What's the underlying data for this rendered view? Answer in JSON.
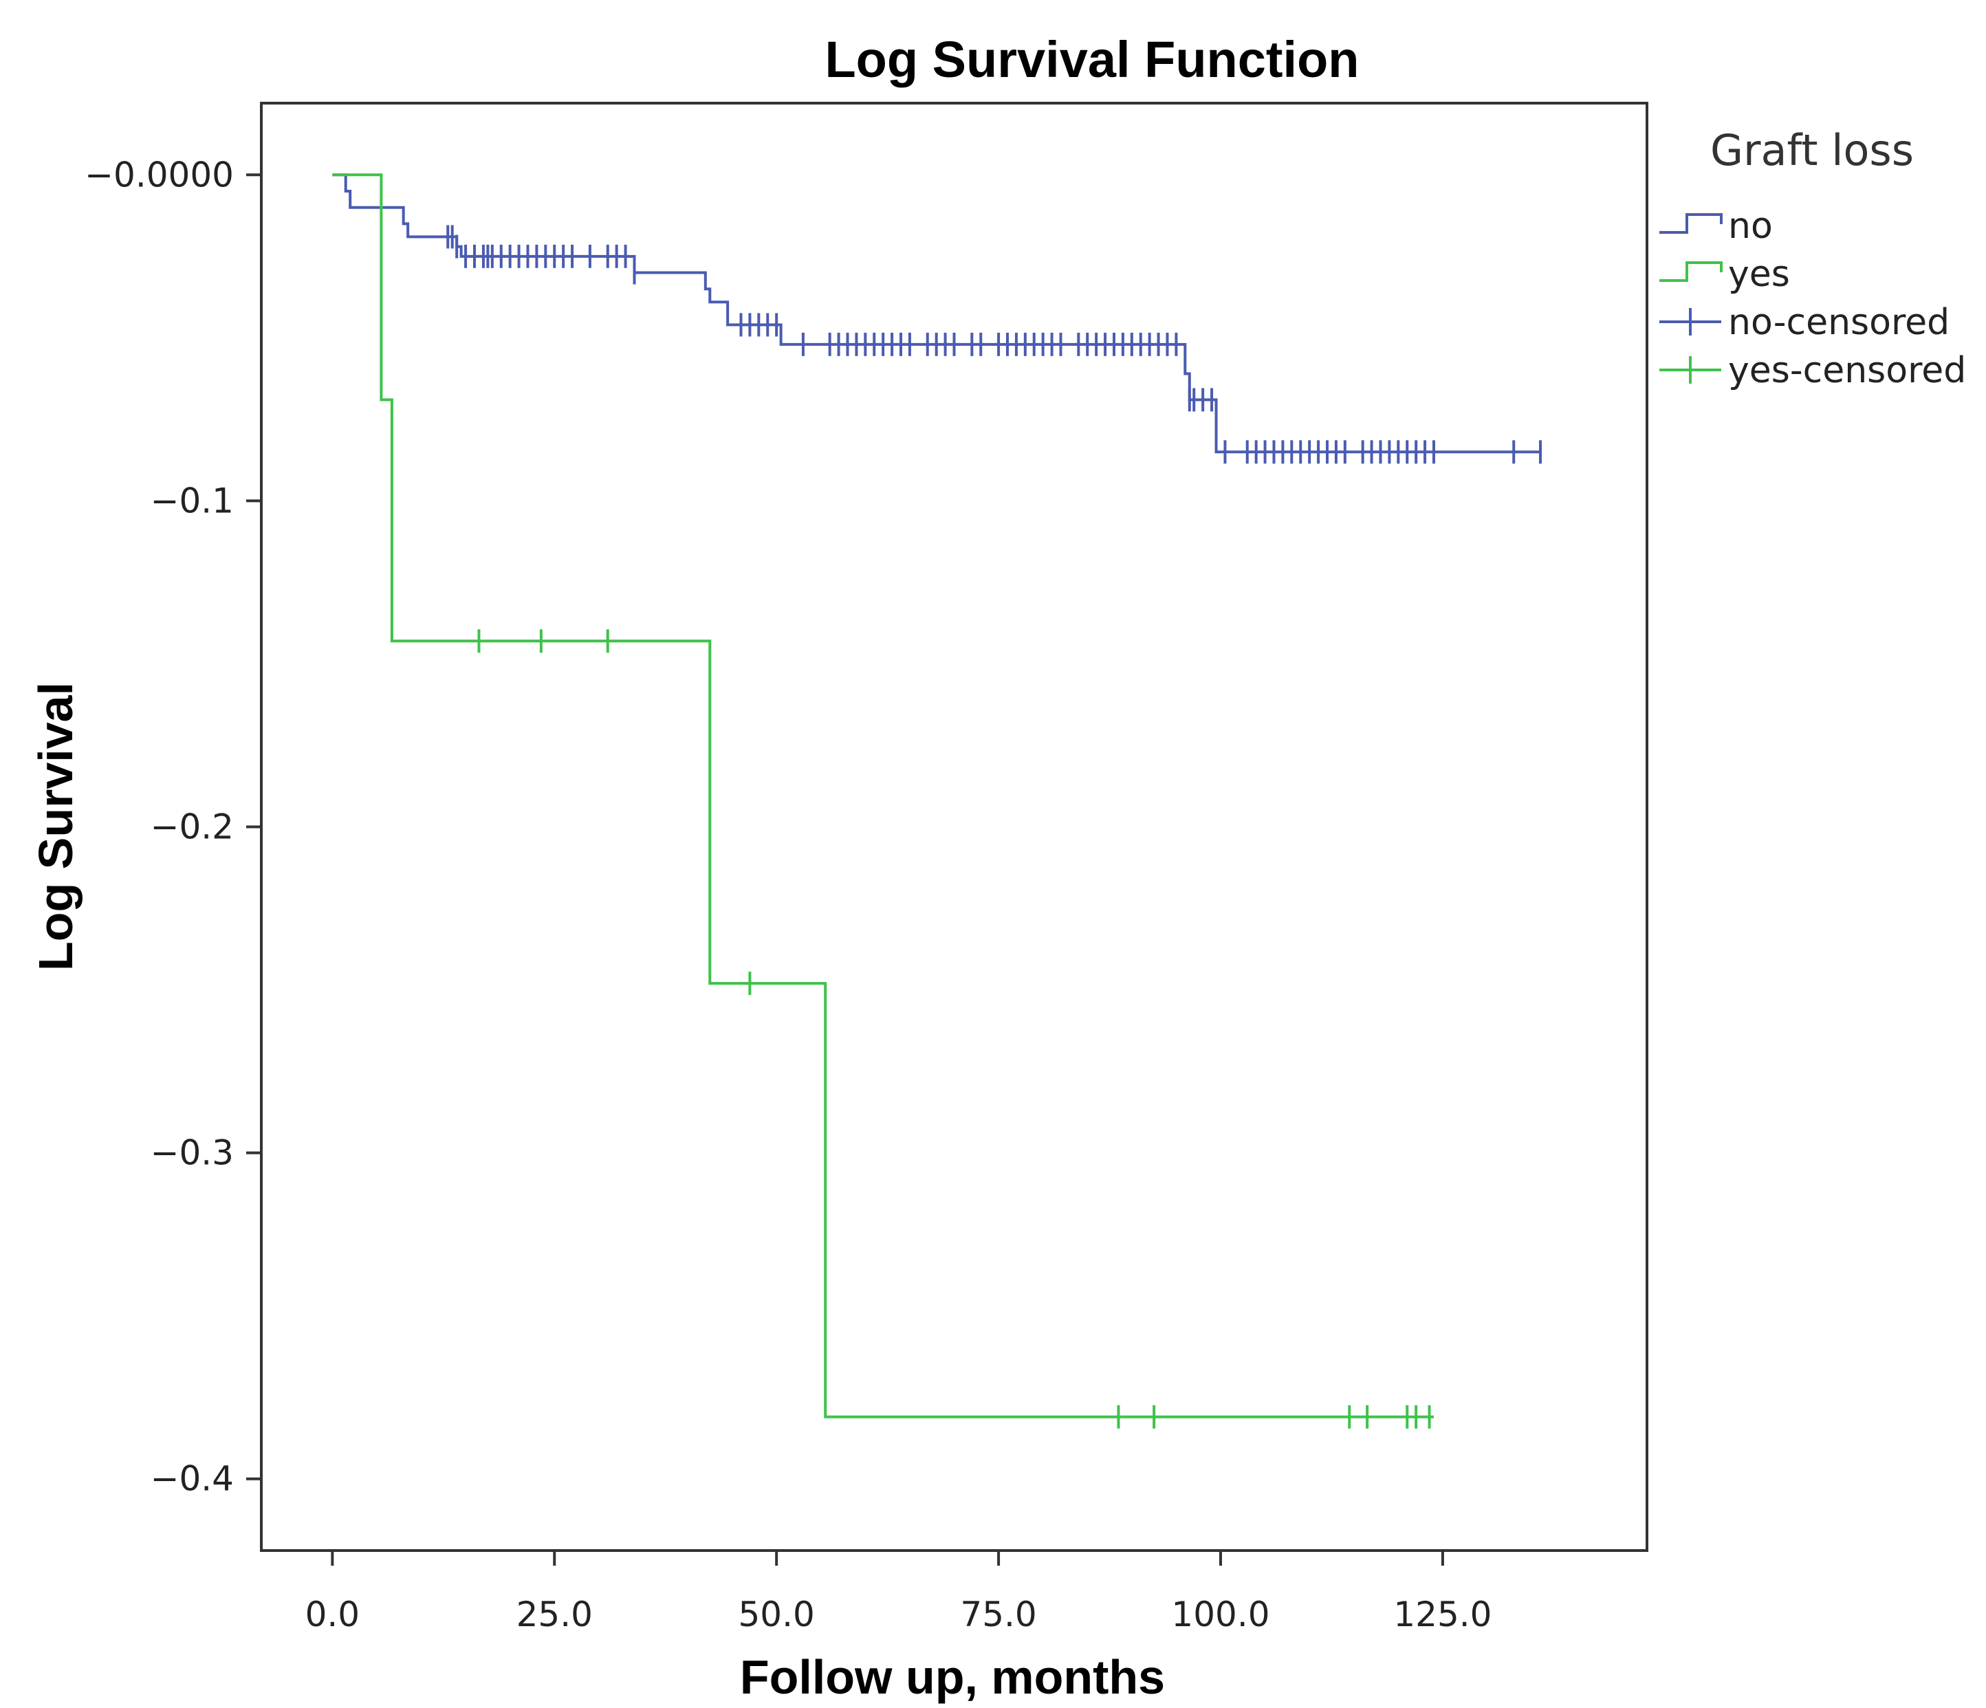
{
  "chart_data": {
    "type": "line",
    "subtype": "kaplan-meier-step",
    "title": "Log Survival Function",
    "xlabel": "Follow up, months",
    "ylabel": "Log Survival",
    "xlim": [
      -8,
      148
    ],
    "ylim": [
      -0.422,
      0.022
    ],
    "x_ticks": [
      {
        "value": 0,
        "label": "0.0"
      },
      {
        "value": 25,
        "label": "25.0"
      },
      {
        "value": 50,
        "label": "50.0"
      },
      {
        "value": 75,
        "label": "75.0"
      },
      {
        "value": 100,
        "label": "100.0"
      },
      {
        "value": 125,
        "label": "125.0"
      }
    ],
    "y_ticks": [
      {
        "value": 0,
        "label": "−0.0000"
      },
      {
        "value": -0.1,
        "label": "−0.1"
      },
      {
        "value": -0.2,
        "label": "−0.2"
      },
      {
        "value": -0.3,
        "label": "−0.3"
      },
      {
        "value": -0.4,
        "label": "−0.4"
      }
    ],
    "grid": false,
    "legend": {
      "title": "Graft loss",
      "position": "right",
      "entries": [
        {
          "label": "no",
          "series": "no",
          "kind": "line"
        },
        {
          "label": "yes",
          "series": "yes",
          "kind": "line"
        },
        {
          "label": "no-censored",
          "series": "no",
          "kind": "censor"
        },
        {
          "label": "yes-censored",
          "series": "yes",
          "kind": "censor"
        }
      ]
    },
    "series": [
      {
        "name": "no",
        "color": "#4a5bb0",
        "steps": [
          {
            "x": 0,
            "y": 0
          },
          {
            "x": 1.5,
            "y": -0.005
          },
          {
            "x": 2,
            "y": -0.01
          },
          {
            "x": 8,
            "y": -0.015
          },
          {
            "x": 8.5,
            "y": -0.019
          },
          {
            "x": 14,
            "y": -0.022
          },
          {
            "x": 14.5,
            "y": -0.025
          },
          {
            "x": 34,
            "y": -0.03
          },
          {
            "x": 42,
            "y": -0.035
          },
          {
            "x": 42.5,
            "y": -0.039
          },
          {
            "x": 44.5,
            "y": -0.046
          },
          {
            "x": 50.5,
            "y": -0.052
          },
          {
            "x": 96,
            "y": -0.061
          },
          {
            "x": 96.5,
            "y": -0.069
          },
          {
            "x": 99.5,
            "y": -0.085
          }
        ],
        "end_x": 136,
        "censored": [
          13,
          13.5,
          14,
          15,
          16,
          17,
          17.5,
          18,
          19,
          20,
          21,
          22,
          23,
          24,
          25,
          26,
          27,
          29,
          31,
          32,
          33,
          34,
          46,
          47,
          48,
          49,
          50,
          53,
          56,
          57,
          58,
          59,
          60,
          61,
          62,
          63,
          64,
          65,
          67,
          68,
          69,
          70,
          72,
          73,
          75,
          76,
          77,
          78,
          79,
          80,
          81,
          82,
          84,
          85,
          86,
          87,
          88,
          89,
          90,
          91,
          92,
          93,
          94,
          95,
          96.5,
          97,
          98,
          99,
          100.5,
          103,
          104,
          105,
          106,
          107,
          108,
          109,
          110,
          111,
          112,
          113,
          114,
          116,
          117,
          118,
          119,
          120,
          121,
          122,
          123,
          124,
          133,
          136
        ]
      },
      {
        "name": "yes",
        "color": "#3fc24a",
        "steps": [
          {
            "x": 0,
            "y": 0
          },
          {
            "x": 5.5,
            "y": -0.069
          },
          {
            "x": 6.7,
            "y": -0.143
          },
          {
            "x": 42.5,
            "y": -0.248
          },
          {
            "x": 55.5,
            "y": -0.381
          }
        ],
        "end_x": 124,
        "censored": [
          16.5,
          23.5,
          31,
          47,
          88.5,
          92.5,
          114.5,
          116.5,
          121,
          122,
          123.5
        ]
      }
    ]
  }
}
